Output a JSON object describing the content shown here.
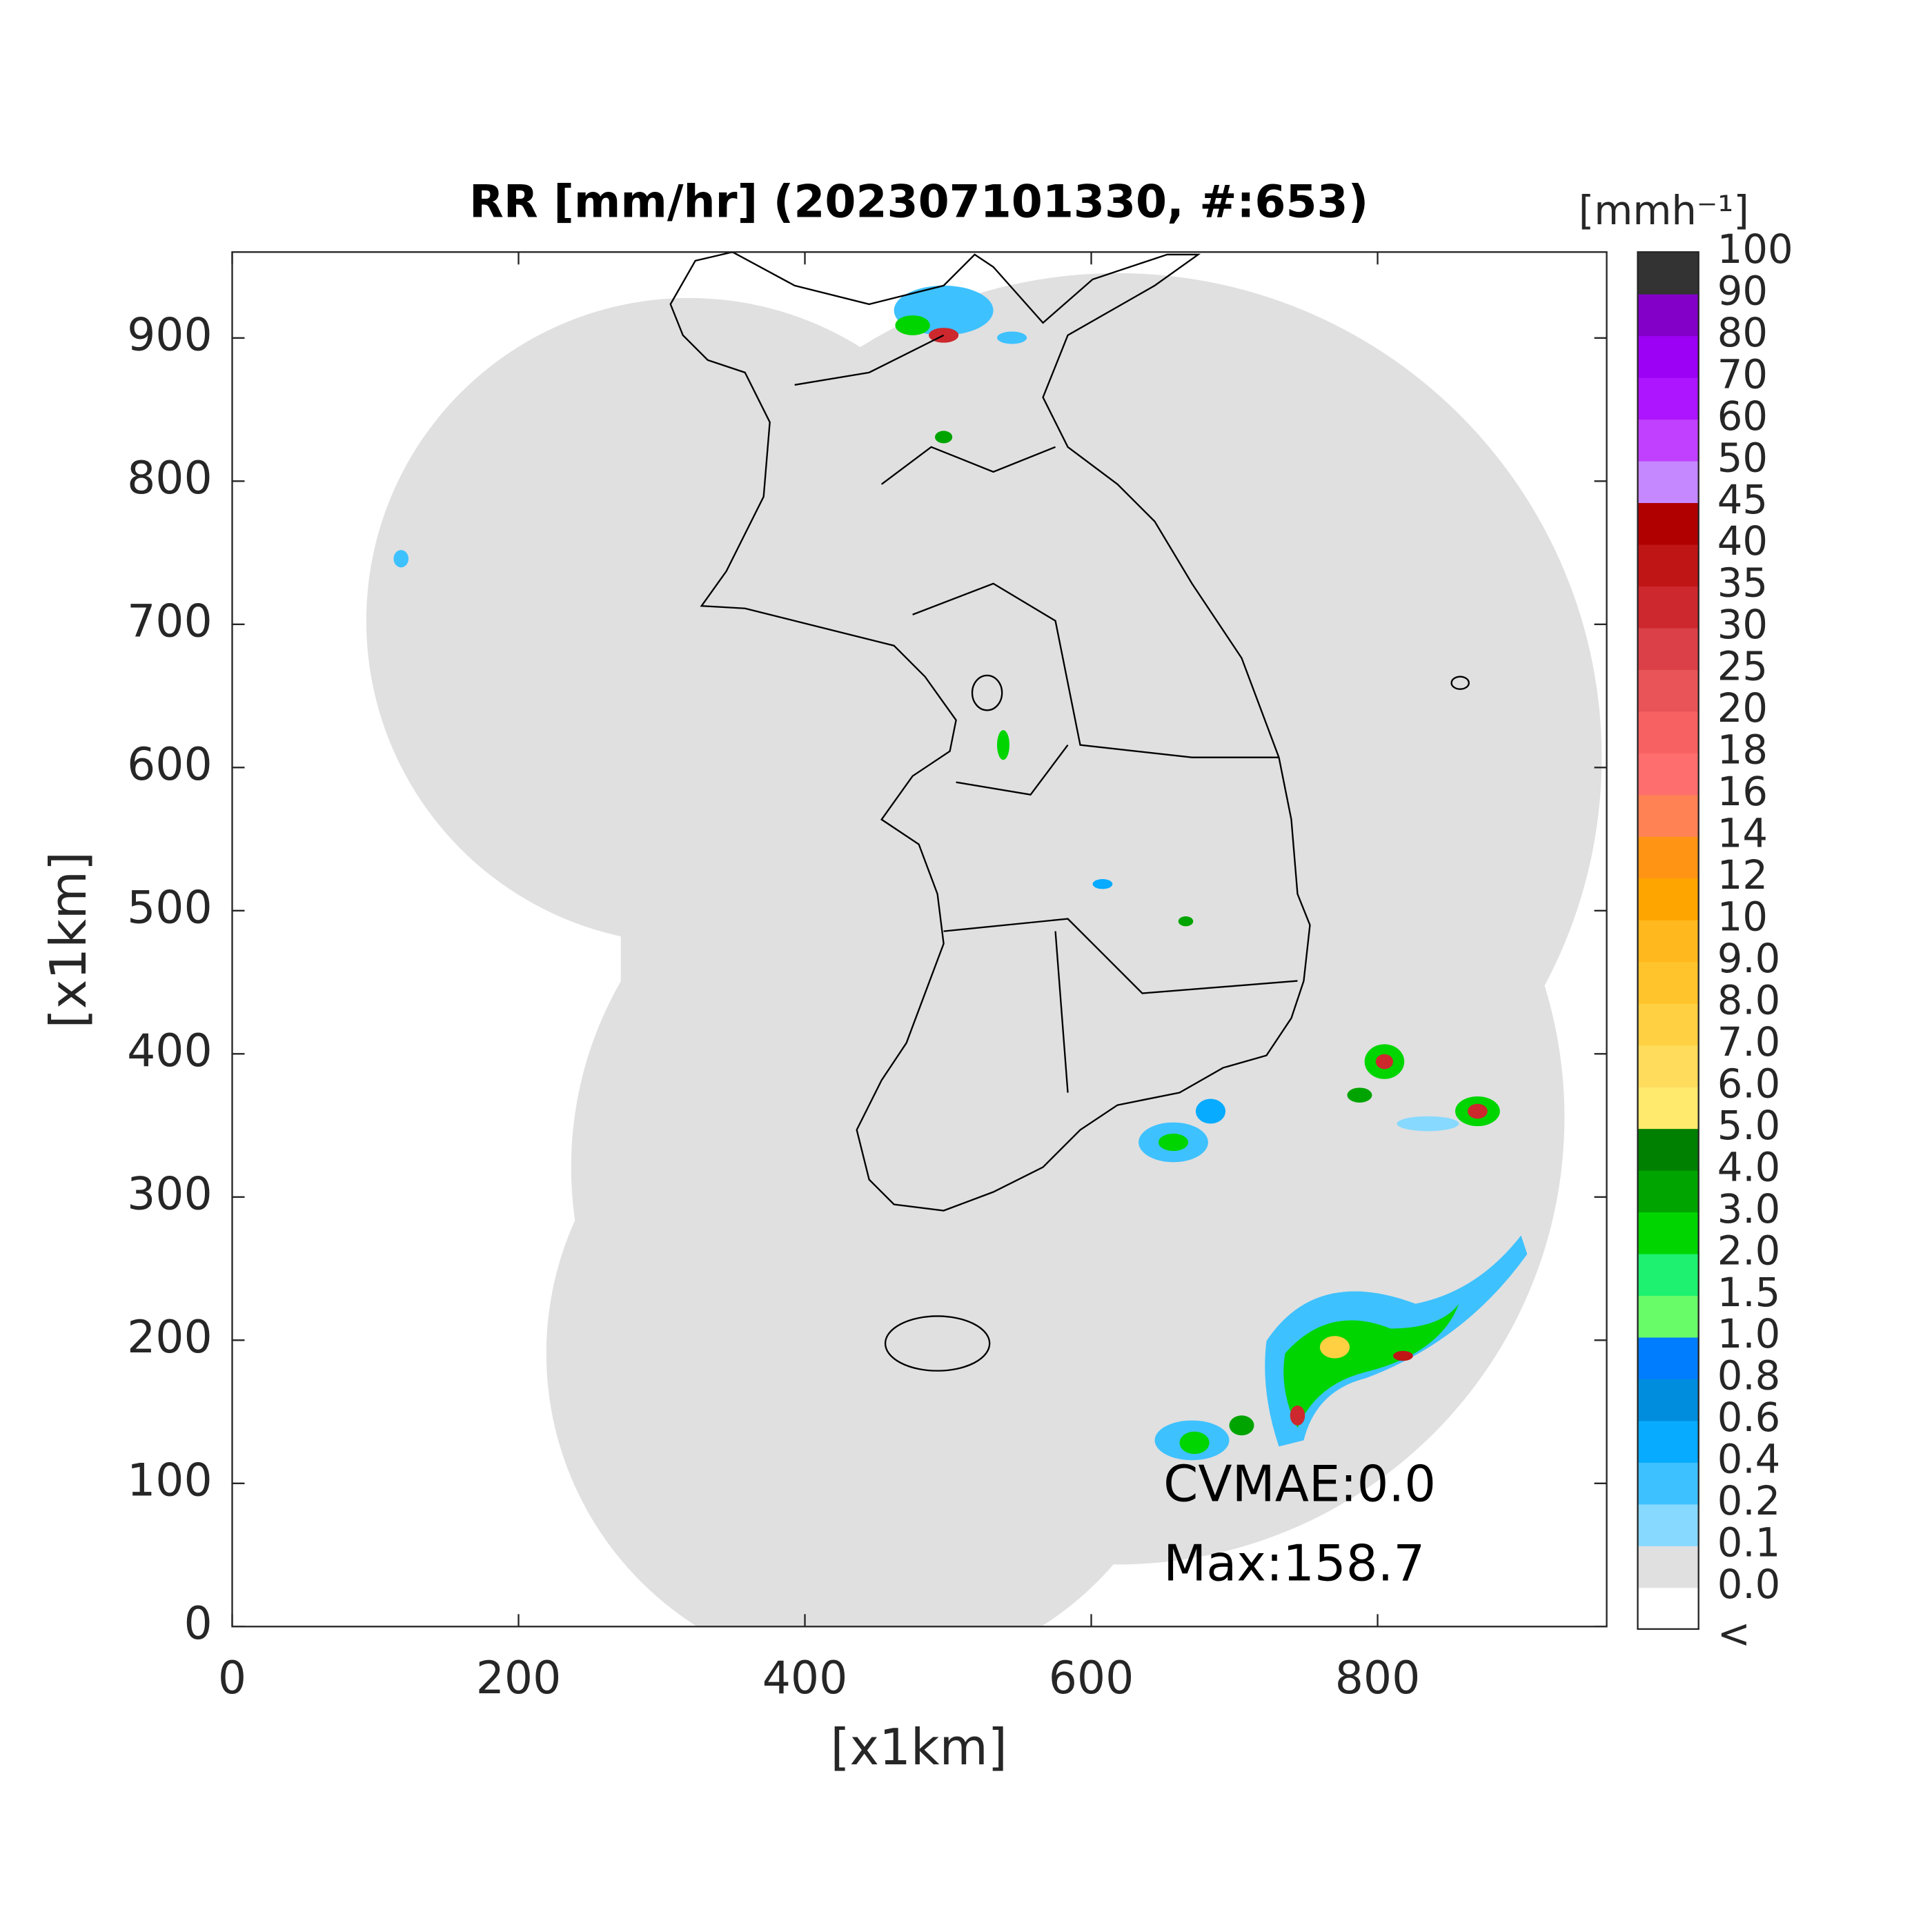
{
  "map": {
    "title": "RR [mm/hr] (202307101330, #:653)",
    "xlabel": "[x1km]",
    "ylabel": "[x1km]",
    "xlim": [
      0,
      960
    ],
    "ylim": [
      0,
      960
    ],
    "xticks": [
      0,
      200,
      400,
      600,
      800
    ],
    "yticks": [
      0,
      100,
      200,
      300,
      400,
      500,
      600,
      700,
      800,
      900
    ],
    "annotations": [
      "CVMAE:0.0",
      "Max:158.7"
    ],
    "colorbar": {
      "label": "[mmh⁻¹]",
      "levels": [
        "<",
        "0.0",
        "0.1",
        "0.2",
        "0.4",
        "0.6",
        "0.8",
        "1.0",
        "1.5",
        "2.0",
        "3.0",
        "4.0",
        "5.0",
        "6.0",
        "7.0",
        "8.0",
        "9.0",
        "10",
        "12",
        "14",
        "16",
        "18",
        "20",
        "25",
        "30",
        "35",
        "40",
        "45",
        "50",
        "60",
        "70",
        "80",
        "90",
        "100"
      ],
      "colors": [
        "#ffffff",
        "#e0e0e0",
        "#87d9ff",
        "#3ec1ff",
        "#07abff",
        "#008dde",
        "#007dff",
        "#69fc69",
        "#1ef16f",
        "#00d500",
        "#00a400",
        "#008000",
        "#ffea6e",
        "#ffdc5b",
        "#ffd042",
        "#ffc42c",
        "#ffb81d",
        "#ffa500",
        "#ff9414",
        "#ff8255",
        "#ff6e6e",
        "#f86161",
        "#e85457",
        "#db4048",
        "#cc282d",
        "#bf1515",
        "#b00000",
        "#c688ff",
        "#c140ff",
        "#ad14ff",
        "#9c00f5",
        "#8200c8",
        "#333333"
      ]
    }
  }
}
